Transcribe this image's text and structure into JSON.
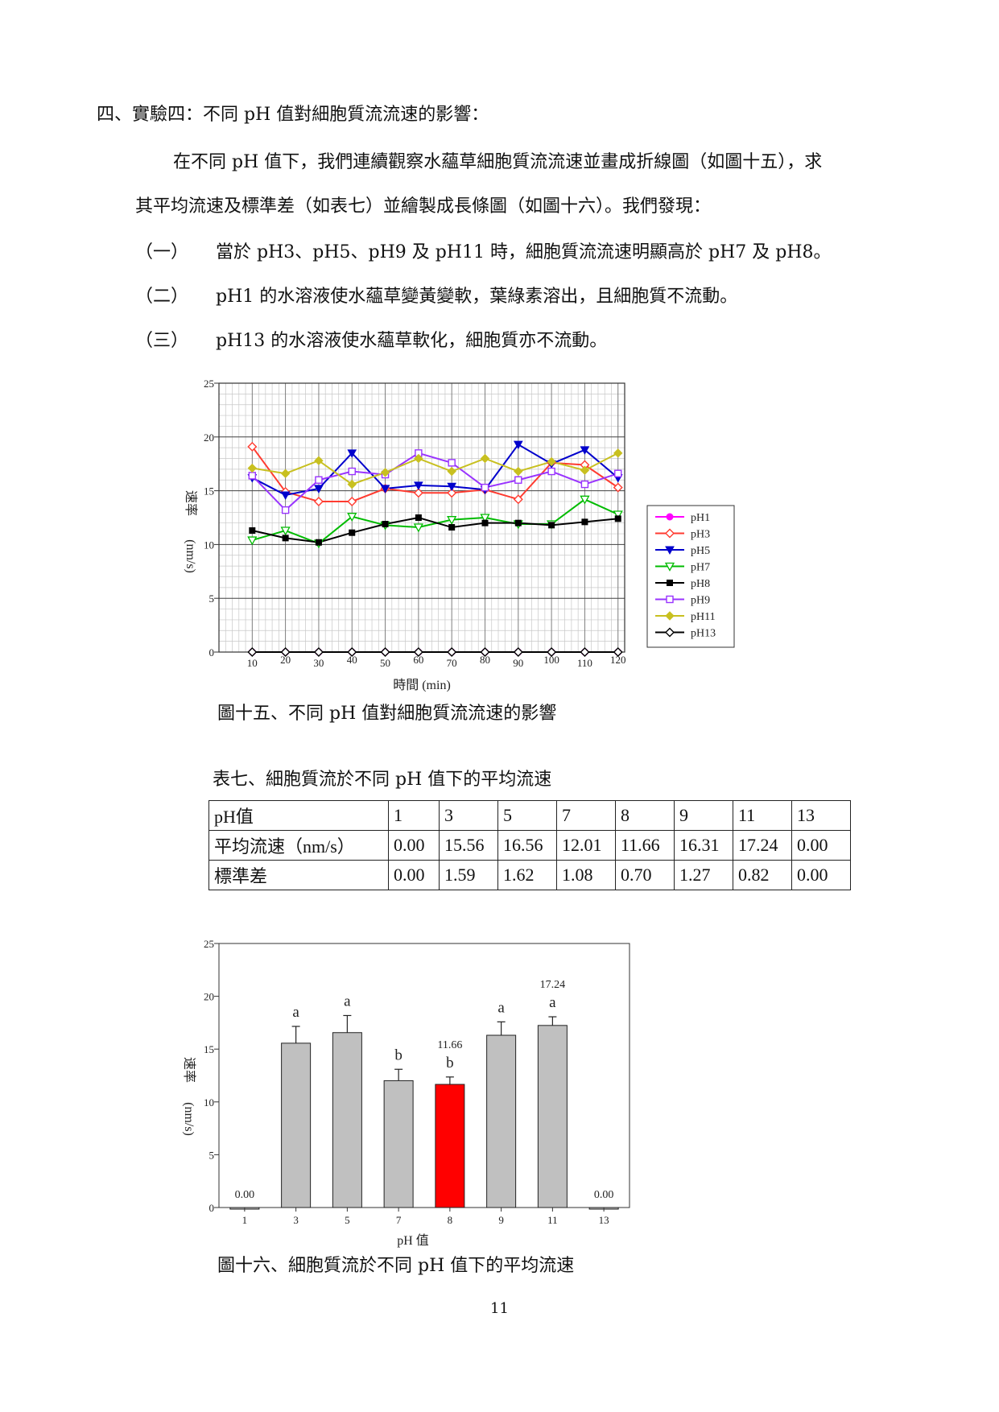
{
  "section_heading": "四、實驗四：不同 pH 值對細胞質流流速的影響：",
  "intro_line1": "在不同 pH 值下，我們連續觀察水蘊草細胞質流流速並畫成折線圖（如圖十五），求",
  "intro_line2": "其平均流速及標準差（如表七）並繪製成長條圖（如圖十六）。我們發現：",
  "findings": [
    {
      "num": "（一）",
      "text": "當於 pH3、pH5、pH9 及 pH11 時，細胞質流流速明顯高於 pH7 及 pH8。"
    },
    {
      "num": "（二）",
      "text": "pH1 的水溶液使水蘊草變黃變軟，葉綠素溶出，且細胞質不流動。"
    },
    {
      "num": "（三）",
      "text": "pH13 的水溶液使水蘊草軟化，細胞質亦不流動。"
    }
  ],
  "figure15_caption": "圖十五、不同 pH 值對細胞質流流速的影響",
  "table_caption": "表七、細胞質流於不同 pH 值下的平均流速",
  "table": {
    "headers": [
      "pH值",
      "1",
      "3",
      "5",
      "7",
      "8",
      "9",
      "11",
      "13"
    ],
    "rows": [
      [
        "平均流速（nm/s）",
        "0.00",
        "15.56",
        "16.56",
        "12.01",
        "11.66",
        "16.31",
        "17.24",
        "0.00"
      ],
      [
        "標準差",
        "0.00",
        "1.59",
        "1.62",
        "1.08",
        "0.70",
        "1.27",
        "0.82",
        "0.00"
      ]
    ]
  },
  "figure16_caption": "圖十六、細胞質流於不同 pH 值下的平均流速",
  "page_number": "11",
  "chart_data": [
    {
      "type": "line",
      "title": "",
      "xlabel": "時間 (min)",
      "ylabel_top": "速率",
      "ylabel_bottom": "(nm/s)",
      "x": [
        10,
        20,
        30,
        40,
        50,
        60,
        70,
        80,
        90,
        100,
        110,
        120
      ],
      "xlim": [
        0,
        122
      ],
      "ylim": [
        0,
        25
      ],
      "yticks": [
        0,
        5,
        10,
        15,
        20,
        25
      ],
      "grid": true,
      "legend_position": "right",
      "series": [
        {
          "name": "pH1",
          "color": "#ff00ff",
          "marker": "circle-filled",
          "values": [
            0,
            0,
            0,
            0,
            0,
            0,
            0,
            0,
            0,
            0,
            0,
            0
          ]
        },
        {
          "name": "pH3",
          "color": "#ff3b30",
          "marker": "diamond-open",
          "values": [
            19.1,
            14.9,
            14.0,
            14.0,
            15.2,
            14.8,
            14.8,
            15.1,
            14.2,
            17.6,
            17.4,
            15.3
          ]
        },
        {
          "name": "pH5",
          "color": "#0000cc",
          "marker": "triangle-down",
          "values": [
            16.2,
            14.6,
            15.2,
            18.5,
            15.2,
            15.5,
            15.4,
            15.1,
            19.3,
            17.5,
            18.8,
            16.2
          ]
        },
        {
          "name": "pH7",
          "color": "#00bb00",
          "marker": "triangle-open",
          "values": [
            10.4,
            11.3,
            10.1,
            12.6,
            11.8,
            11.6,
            12.3,
            12.5,
            11.9,
            11.9,
            14.2,
            12.8
          ]
        },
        {
          "name": "pH8",
          "color": "#000000",
          "marker": "square-filled",
          "values": [
            11.3,
            10.6,
            10.2,
            11.1,
            11.9,
            12.5,
            11.6,
            12.0,
            12.0,
            11.8,
            12.1,
            12.4
          ]
        },
        {
          "name": "pH9",
          "color": "#9933ff",
          "marker": "square-open",
          "values": [
            16.4,
            13.2,
            16.0,
            16.8,
            16.5,
            18.5,
            17.6,
            15.3,
            16.0,
            16.8,
            15.6,
            16.6
          ]
        },
        {
          "name": "pH11",
          "color": "#c8c020",
          "marker": "diamond-filled",
          "values": [
            17.1,
            16.6,
            17.8,
            15.6,
            16.7,
            18.0,
            16.8,
            18.0,
            16.8,
            17.7,
            16.9,
            18.5
          ]
        },
        {
          "name": "pH13",
          "color": "#000000",
          "marker": "diamond-open",
          "values": [
            0,
            0,
            0,
            0,
            0,
            0,
            0,
            0,
            0,
            0,
            0,
            0
          ]
        }
      ]
    },
    {
      "type": "bar",
      "title": "",
      "xlabel": "pH 值",
      "ylabel_top": "速率",
      "ylabel_bottom": "(nm/s)",
      "categories": [
        "1",
        "3",
        "5",
        "7",
        "8",
        "9",
        "11",
        "13"
      ],
      "values": [
        0.0,
        15.56,
        16.56,
        12.01,
        11.66,
        16.31,
        17.24,
        0.0
      ],
      "errors": [
        0.0,
        1.59,
        1.62,
        1.08,
        0.7,
        1.27,
        0.82,
        0.0
      ],
      "group_letters": [
        "",
        "a",
        "a",
        "b",
        "b",
        "a",
        "a",
        ""
      ],
      "value_labels": [
        "0.00",
        "",
        "",
        "",
        "11.66",
        "",
        "17.24",
        "0.00"
      ],
      "bar_color": "#c0c0c0",
      "highlight_color": "#ff0000",
      "highlight_index": 4,
      "ylim": [
        0,
        25
      ],
      "yticks": [
        0,
        5,
        10,
        15,
        20,
        25
      ]
    }
  ]
}
